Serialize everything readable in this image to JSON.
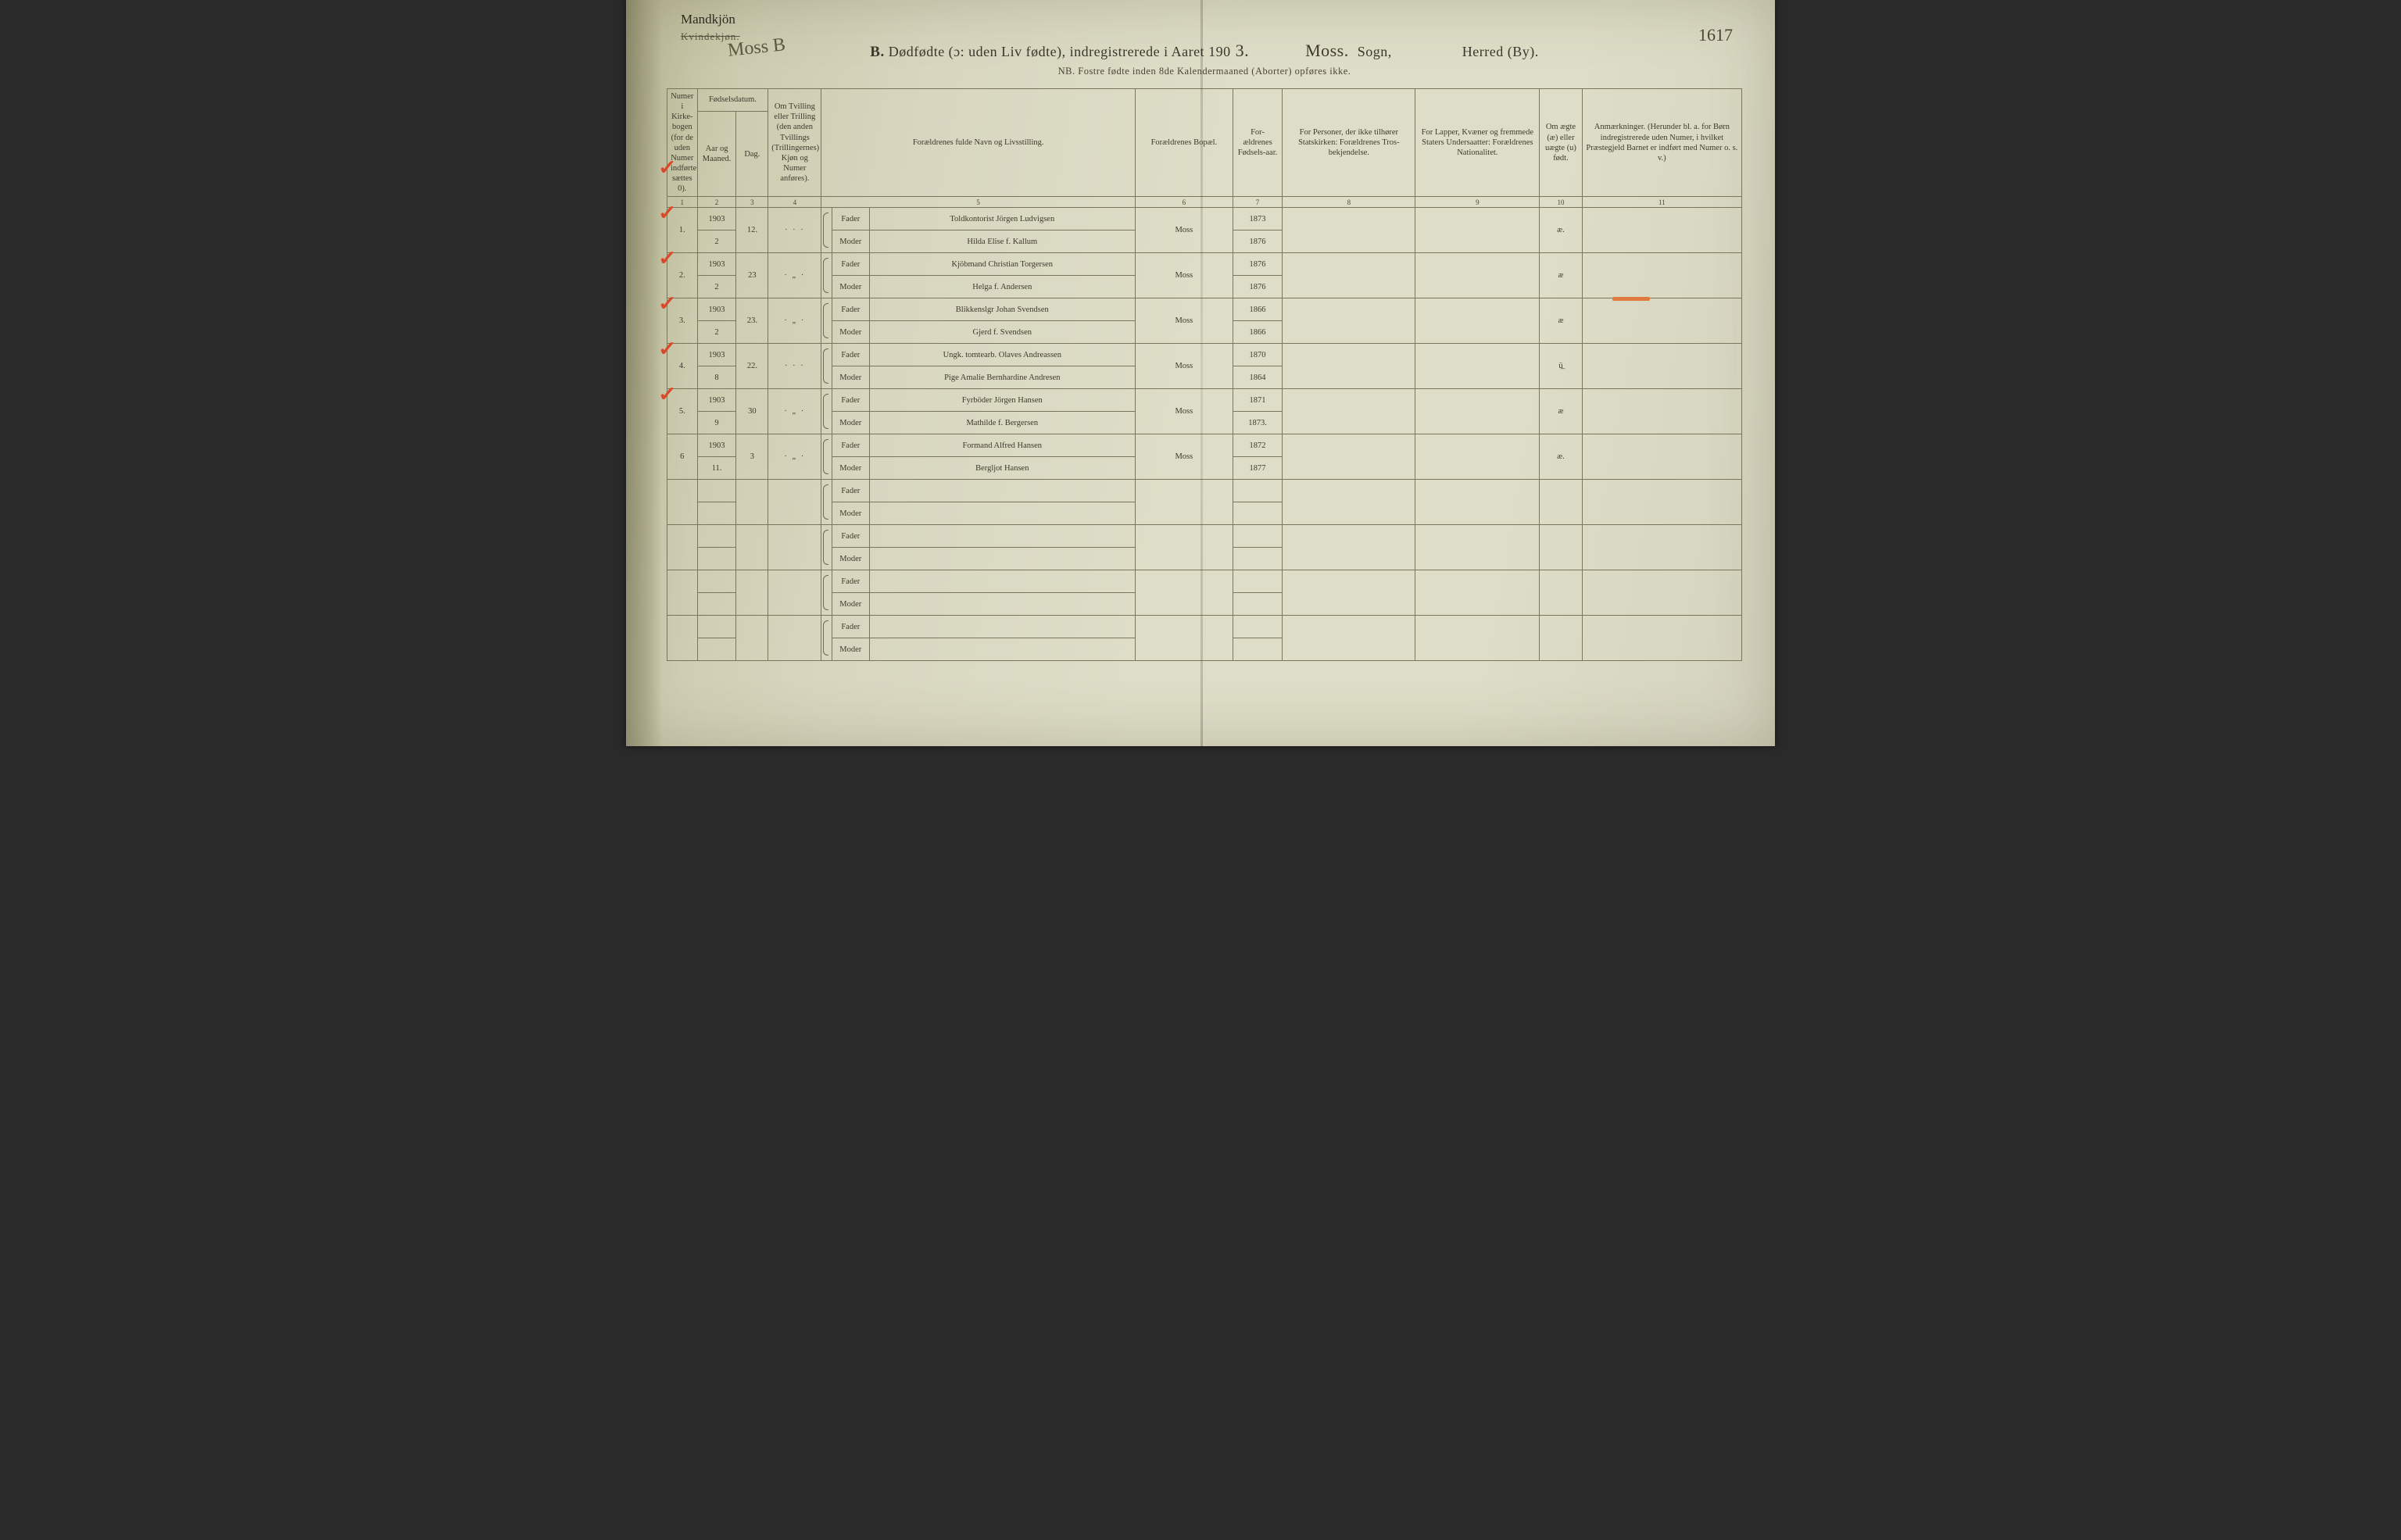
{
  "header": {
    "gender_handwritten": "Mandkjön",
    "gender_struck": "Kvindekjøn.",
    "moss_b": "Moss B",
    "page_number": "1617",
    "title_prefix": "B.",
    "title_main": "Dødfødte (ɔ: uden Liv fødte), indregistrerede i Aaret 190",
    "title_year_hand": "3.",
    "sogn_hand": "Moss.",
    "sogn_label": "Sogn,",
    "herred_label": "Herred (By).",
    "subtitle": "NB.  Fostre fødte inden 8de Kalendermaaned (Aborter) opføres ikke."
  },
  "columns": {
    "c1": "Numer i Kirke-bogen (for de uden Numer indførte sættes 0).",
    "c2_group": "Fødselsdatum.",
    "c2a": "Aar og Maaned.",
    "c2b": "Dag.",
    "c3": "Om Tvilling eller Trilling (den anden Tvillings (Trillingernes) Kjøn og Numer anføres).",
    "c5": "Forældrenes fulde Navn og Livsstilling.",
    "c6": "Forældrenes Bopæl.",
    "c7": "For-ældrenes Fødsels-aar.",
    "c8": "For Personer, der ikke tilhører Statskirken: Forældrenes Tros-bekjendelse.",
    "c9": "For Lapper, Kvæner og fremmede Staters Undersaatter: Forældrenes Nationalitet.",
    "c10": "Om ægte (æ) eller uægte (u) født.",
    "c11": "Anmærkninger. (Herunder bl. a. for Børn indregistrerede uden Numer, i hvilket Præstegjeld Barnet er indført med Numer o. s. v.)",
    "nums": [
      "1",
      "2",
      "3",
      "4",
      "5",
      "6",
      "7",
      "8",
      "9",
      "10",
      "11"
    ]
  },
  "role_labels": {
    "fader": "Fader",
    "moder": "Moder"
  },
  "ditto": "„ · „",
  "rows": [
    {
      "check": true,
      "num": "1.",
      "aar": "1903",
      "maaned": "2",
      "dag": "12.",
      "tvilling": "· · ·",
      "fader": "Toldkontorist Jörgen Ludvigsen",
      "moder": "Hilda Elise f. Kallum",
      "bopel": "Moss",
      "f_aar_f": "1873",
      "f_aar_m": "1876",
      "aegte": "æ."
    },
    {
      "check": true,
      "num": "2.",
      "aar": "1903",
      "maaned": "2",
      "dag": "23",
      "tvilling": "· „ ·",
      "fader": "Kjöbmand Christian Torgersen",
      "moder": "Helga f. Andersen",
      "bopel": "Moss",
      "f_aar_f": "1876",
      "f_aar_m": "1876",
      "aegte": "æ"
    },
    {
      "check": true,
      "num": "3.",
      "aar": "1903",
      "maaned": "2",
      "dag": "23.",
      "tvilling": "· „ ·",
      "fader": "Blikkenslgr Johan Svendsen",
      "moder": "Gjerd f. Svendsen",
      "bopel": "Moss",
      "f_aar_f": "1866",
      "f_aar_m": "1866",
      "aegte": "æ"
    },
    {
      "check": true,
      "num": "4.",
      "aar": "1903",
      "maaned": "8",
      "dag": "22.",
      "tvilling": "· · ·",
      "fader": "Ungk. tomtearb. Olaves Andreassen",
      "moder": "Pige Amalie Bernhardine Andresen",
      "bopel": "Moss",
      "f_aar_f": "1870",
      "f_aar_m": "1864",
      "aegte": "ü̲",
      "remark_dash": true
    },
    {
      "check": true,
      "num": "5.",
      "aar": "1903",
      "maaned": "9",
      "dag": "30",
      "tvilling": "· „ ·",
      "fader": "Fyrböder Jörgen Hansen",
      "moder": "Mathilde f. Bergersen",
      "bopel": "Moss",
      "f_aar_f": "1871",
      "f_aar_m": "1873.",
      "aegte": "æ"
    },
    {
      "check": true,
      "num": "6",
      "aar": "1903",
      "maaned": "11.",
      "dag": "3",
      "tvilling": "· „ ·",
      "fader": "Formand Alfred Hansen",
      "moder": "Bergljot Hansen",
      "bopel": "Moss",
      "f_aar_f": "1872",
      "f_aar_m": "1877",
      "aegte": "æ."
    }
  ],
  "empty_rows": 4,
  "colors": {
    "checkmark": "#d84a2a",
    "orange_dash": "#e07a3f",
    "rule": "#7a755b",
    "ink": "#2e2b20",
    "print": "#3d3a2c"
  }
}
